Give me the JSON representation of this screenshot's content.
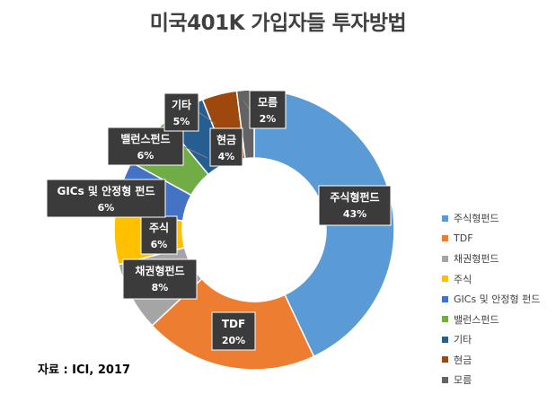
{
  "page": {
    "title": "미국401K 가입자들 투자방법",
    "source": "자료 : ICI, 2017"
  },
  "chart_data": {
    "type": "pie",
    "title": "미국401K 가입자들 투자방법",
    "donut": true,
    "legend_position": "right",
    "categories": [
      "주식형펀드",
      "TDF",
      "채권형펀드",
      "주식",
      "GICs 및 안정형 펀드",
      "밸런스펀드",
      "기타",
      "현금",
      "모름"
    ],
    "values": [
      43,
      20,
      8,
      6,
      6,
      6,
      5,
      4,
      2
    ],
    "value_labels": [
      "43%",
      "20%",
      "8%",
      "6%",
      "6%",
      "6%",
      "5%",
      "4%",
      "2%"
    ],
    "colors": [
      "#5B9BD5",
      "#ED7D31",
      "#A5A5A5",
      "#FFC000",
      "#4472C4",
      "#70AD47",
      "#255E91",
      "#9E480E",
      "#636363"
    ],
    "label_style": {
      "background": "#3B3B3B",
      "text_color": "#FFFFFF"
    }
  }
}
